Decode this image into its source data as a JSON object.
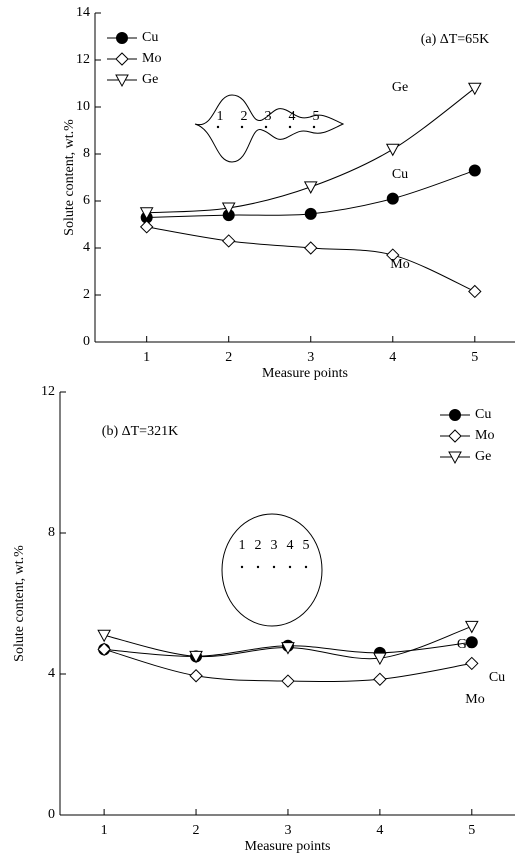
{
  "chart_data": [
    {
      "type": "line",
      "annotation": "(a) ΔT=65K",
      "xlabel": "Measure points",
      "ylabel": "Solute content, wt.%",
      "x": [
        1,
        2,
        3,
        4,
        5
      ],
      "xlim": [
        0.37,
        5.49
      ],
      "xticks": [
        1,
        2,
        3,
        4,
        5
      ],
      "ylim": [
        0,
        14
      ],
      "yticks": [
        0,
        2,
        4,
        6,
        8,
        10,
        12,
        14
      ],
      "legend": "upper left",
      "inset_labels": [
        "1",
        "2",
        "3",
        "4",
        "5"
      ],
      "series": [
        {
          "name": "Cu",
          "color": "#000000",
          "marker": "circle",
          "values": [
            5.3,
            5.4,
            5.45,
            6.1,
            7.3
          ]
        },
        {
          "name": "Mo",
          "color": "#000000",
          "marker": "diamond",
          "values": [
            4.9,
            4.3,
            4.0,
            3.7,
            2.15
          ]
        },
        {
          "name": "Ge",
          "color": "#000000",
          "marker": "triangle-down",
          "values": [
            5.5,
            5.7,
            6.6,
            8.2,
            10.8
          ]
        }
      ]
    },
    {
      "type": "line",
      "annotation": "(b) ΔT=321K",
      "xlabel": "Measure points",
      "ylabel": "Solute content, wt.%",
      "x": [
        1,
        2,
        3,
        4,
        5
      ],
      "xlim": [
        0.52,
        5.47
      ],
      "xticks": [
        1,
        2,
        3,
        4,
        5
      ],
      "ylim": [
        0,
        12
      ],
      "yticks": [
        0,
        4,
        8,
        12
      ],
      "legend": "upper right",
      "inset_labels": [
        "1",
        "2",
        "3",
        "4",
        "5"
      ],
      "series": [
        {
          "name": "Cu",
          "color": "#000000",
          "marker": "circle",
          "values": [
            4.7,
            4.5,
            4.8,
            4.6,
            4.9
          ]
        },
        {
          "name": "Mo",
          "color": "#000000",
          "marker": "diamond",
          "values": [
            4.7,
            3.95,
            3.8,
            3.85,
            4.3
          ]
        },
        {
          "name": "Ge",
          "color": "#000000",
          "marker": "triangle-down",
          "values": [
            5.1,
            4.5,
            4.75,
            4.45,
            5.35
          ]
        }
      ]
    }
  ]
}
